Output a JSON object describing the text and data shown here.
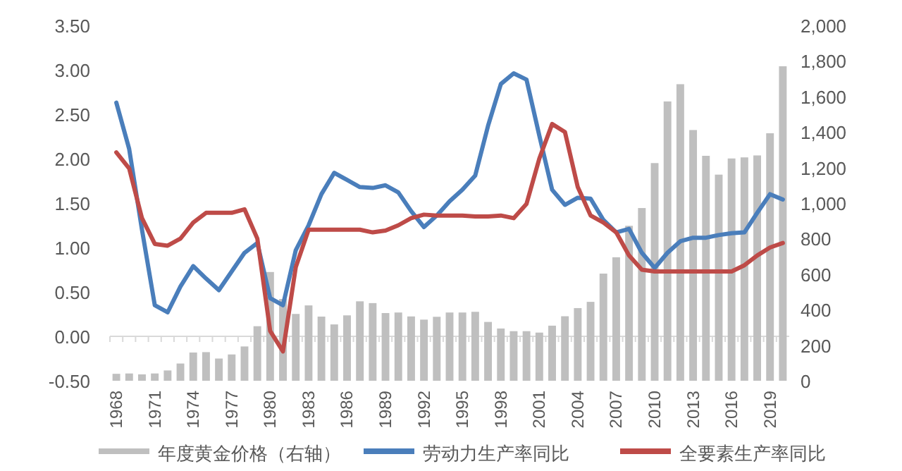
{
  "chart_data": {
    "type": "line",
    "categories": [
      "1968",
      null,
      null,
      "1971",
      null,
      null,
      "1974",
      null,
      null,
      "1977",
      null,
      null,
      "1980",
      null,
      null,
      "1983",
      null,
      null,
      "1986",
      null,
      null,
      "1989",
      null,
      null,
      "1992",
      null,
      null,
      "1995",
      null,
      null,
      "1998",
      null,
      null,
      "2001",
      null,
      null,
      "2004",
      null,
      null,
      "2007",
      null,
      null,
      "2010",
      null,
      null,
      "2013",
      null,
      null,
      "2016",
      null,
      null,
      "2019",
      null
    ],
    "series": [
      {
        "name": "年度黄金价格（右轴）",
        "type": "bar",
        "axis": "y2",
        "color": "#bfbfbf",
        "values": [
          39,
          41,
          36,
          41,
          58,
          97,
          159,
          161,
          125,
          148,
          193,
          307,
          612,
          460,
          376,
          424,
          361,
          317,
          368,
          447,
          437,
          381,
          384,
          362,
          344,
          360,
          384,
          384,
          388,
          331,
          294,
          279,
          279,
          271,
          310,
          363,
          409,
          444,
          603,
          695,
          872,
          972,
          1225,
          1572,
          1669,
          1411,
          1266,
          1160,
          1251,
          1257,
          1268,
          1393,
          1770
        ]
      },
      {
        "name": "劳动力生产率同比",
        "color": "#4a7ebb",
        "values": [
          2.63,
          2.11,
          1.2,
          0.35,
          0.27,
          0.56,
          0.79,
          0.65,
          0.52,
          0.73,
          0.94,
          1.05,
          0.43,
          0.35,
          0.97,
          1.25,
          1.6,
          1.84,
          1.76,
          1.68,
          1.67,
          1.7,
          1.62,
          1.41,
          1.23,
          1.36,
          1.52,
          1.65,
          1.81,
          2.37,
          2.84,
          2.96,
          2.89,
          2.26,
          1.65,
          1.48,
          1.56,
          1.55,
          1.31,
          1.17,
          1.21,
          0.94,
          0.77,
          0.94,
          1.07,
          1.11,
          1.11,
          1.14,
          1.16,
          1.17,
          1.39,
          1.6,
          1.54
        ]
      },
      {
        "name": "全要素生产率同比",
        "color": "#be4b48",
        "values": [
          2.07,
          1.89,
          1.33,
          1.04,
          1.02,
          1.1,
          1.28,
          1.39,
          1.39,
          1.39,
          1.43,
          1.1,
          0.06,
          -0.17,
          0.78,
          1.2,
          1.2,
          1.2,
          1.2,
          1.2,
          1.17,
          1.19,
          1.25,
          1.33,
          1.37,
          1.36,
          1.36,
          1.36,
          1.35,
          1.35,
          1.36,
          1.33,
          1.49,
          2.0,
          2.39,
          2.3,
          1.68,
          1.36,
          1.28,
          1.17,
          0.91,
          0.75,
          0.73,
          0.73,
          0.73,
          0.73,
          0.73,
          0.73,
          0.73,
          0.8,
          0.91,
          1.0,
          1.05
        ]
      }
    ],
    "ylim": [
      -0.5,
      3.5
    ],
    "yticks": [
      {
        "value": -0.5,
        "label": "-0.50"
      },
      {
        "value": 0,
        "label": "0.00"
      },
      {
        "value": 0.5,
        "label": "0.50"
      },
      {
        "value": 1,
        "label": "1.00"
      },
      {
        "value": 1.5,
        "label": "1.50"
      },
      {
        "value": 2,
        "label": "2.00"
      },
      {
        "value": 2.5,
        "label": "2.50"
      },
      {
        "value": 3,
        "label": "3.00"
      },
      {
        "value": 3.5,
        "label": "3.50"
      }
    ],
    "y2lim": [
      0,
      2000
    ],
    "y2ticks": [
      0,
      200,
      400,
      600,
      800,
      {
        "value": 1000,
        "label": "1,000"
      },
      {
        "value": 1200,
        "label": "1,200"
      },
      {
        "value": 1400,
        "label": "1,400"
      },
      {
        "value": 1600,
        "label": "1,600"
      },
      {
        "value": 1800,
        "label": "1,800"
      },
      {
        "value": 2000,
        "label": "2,000"
      }
    ],
    "legend": "bottom"
  }
}
